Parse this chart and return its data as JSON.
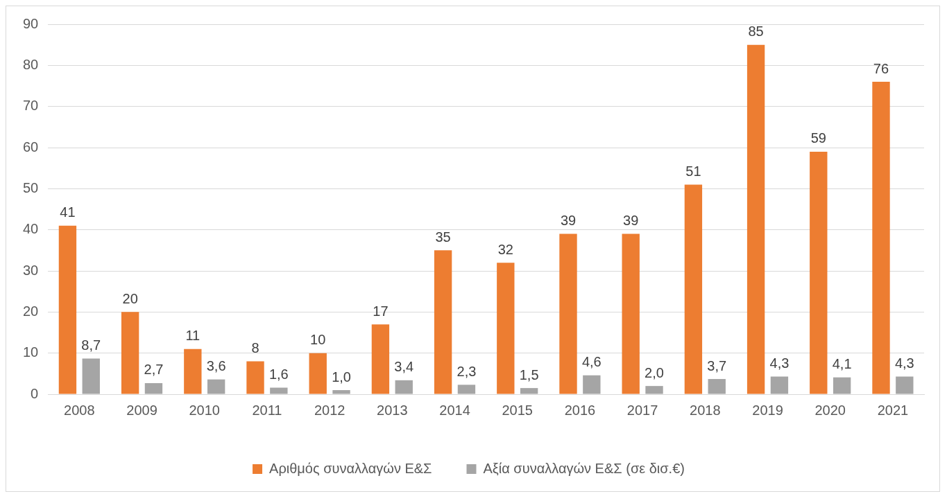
{
  "chart_data": {
    "type": "bar",
    "categories": [
      "2008",
      "2009",
      "2010",
      "2011",
      "2012",
      "2013",
      "2014",
      "2015",
      "2016",
      "2017",
      "2018",
      "2019",
      "2020",
      "2021"
    ],
    "series": [
      {
        "name": "Αριθμός συναλλαγών Ε&Σ",
        "color": "#ed7d31",
        "values": [
          41,
          20,
          11,
          8,
          10,
          17,
          35,
          32,
          39,
          39,
          51,
          85,
          59,
          76
        ],
        "value_labels": [
          "41",
          "20",
          "11",
          "8",
          "10",
          "17",
          "35",
          "32",
          "39",
          "39",
          "51",
          "85",
          "59",
          "76"
        ]
      },
      {
        "name": "Αξία συναλλαγών Ε&Σ (σε δισ.€)",
        "color": "#a5a5a5",
        "values": [
          8.7,
          2.7,
          3.6,
          1.6,
          1.0,
          3.4,
          2.3,
          1.5,
          4.6,
          2.0,
          3.7,
          4.3,
          4.1,
          4.3
        ],
        "value_labels": [
          "8,7",
          "2,7",
          "3,6",
          "1,6",
          "1,0",
          "3,4",
          "2,3",
          "1,5",
          "4,6",
          "2,0",
          "3,7",
          "4,3",
          "4,1",
          "4,3"
        ]
      }
    ],
    "ylim": [
      0,
      90
    ],
    "yticks": [
      0,
      10,
      20,
      30,
      40,
      50,
      60,
      70,
      80,
      90
    ],
    "grid": "y",
    "legend": "bottom"
  }
}
